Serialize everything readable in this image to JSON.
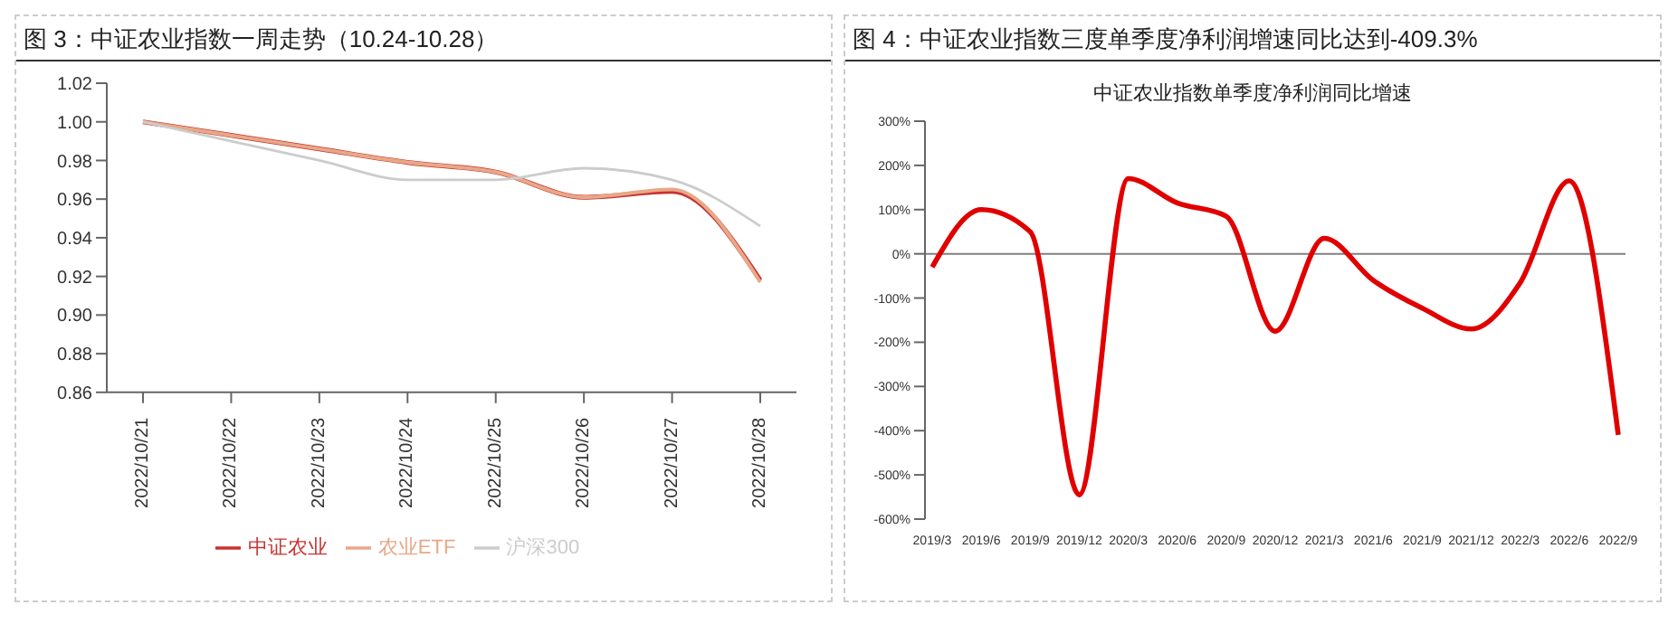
{
  "chart_data": [
    {
      "type": "line",
      "title": "图 3：中证农业指数一周走势（10.24-10.28）",
      "categories": [
        "2022/10/21",
        "2022/10/22",
        "2022/10/23",
        "2022/10/24",
        "2022/10/25",
        "2022/10/26",
        "2022/10/27",
        "2022/10/28"
      ],
      "series": [
        {
          "name": "中证农业",
          "color": "#c83232",
          "values": [
            1.0,
            0.993,
            0.986,
            0.979,
            0.974,
            0.961,
            0.964,
            0.918
          ]
        },
        {
          "name": "农业ETF",
          "color": "#e8a888",
          "values": [
            1.0,
            0.993,
            0.986,
            0.979,
            0.974,
            0.961,
            0.965,
            0.917
          ]
        },
        {
          "name": "沪深300",
          "color": "#cccccc",
          "values": [
            1.0,
            0.99,
            0.98,
            0.97,
            0.97,
            0.976,
            0.97,
            0.946
          ]
        }
      ],
      "ylim": [
        0.86,
        1.02
      ],
      "yticks": [
        {
          "value": 0.86,
          "label": "0.86"
        },
        {
          "value": 0.88,
          "label": "0.88"
        },
        {
          "value": 0.9,
          "label": "0.90"
        },
        {
          "value": 0.92,
          "label": "0.92"
        },
        {
          "value": 0.94,
          "label": "0.94"
        },
        {
          "value": 0.96,
          "label": "0.96"
        },
        {
          "value": 0.98,
          "label": "0.98"
        },
        {
          "value": 1.0,
          "label": "1.00"
        },
        {
          "value": 1.02,
          "label": "1.02"
        }
      ],
      "legend": "bottom",
      "marker": "none",
      "line_style": "solid"
    },
    {
      "type": "line",
      "title": "图 4：中证农业指数三度单季度净利润增速同比达到-409.3%",
      "subtitle": "中证农业指数单季度净利润同比增速",
      "categories": [
        "2019/3",
        "2019/6",
        "2019/9",
        "2019/12",
        "2020/3",
        "2020/6",
        "2020/9",
        "2020/12",
        "2021/3",
        "2021/6",
        "2021/9",
        "2021/12",
        "2022/3",
        "2022/6",
        "2022/9"
      ],
      "series": [
        {
          "color": "#e00000",
          "values": [
            -30,
            100,
            50,
            -545,
            170,
            115,
            85,
            -175,
            35,
            -60,
            -123,
            -170,
            -65,
            165,
            -409.3
          ]
        }
      ],
      "ylim": [
        -600,
        300
      ],
      "yticks": [
        {
          "value": -600,
          "label": "-600%"
        },
        {
          "value": -500,
          "label": "-500%"
        },
        {
          "value": -400,
          "label": "-400%"
        },
        {
          "value": -300,
          "label": "-300%"
        },
        {
          "value": -200,
          "label": "-200%"
        },
        {
          "value": -100,
          "label": "-100%"
        },
        {
          "value": 0,
          "label": "0%"
        },
        {
          "value": 100,
          "label": "100%"
        },
        {
          "value": 200,
          "label": "200%"
        },
        {
          "value": 300,
          "label": "300%"
        }
      ],
      "ref_lines": [
        {
          "axis": "y",
          "value": 0,
          "color": "#808080"
        }
      ],
      "marker": "none",
      "line_style": "solid"
    }
  ]
}
